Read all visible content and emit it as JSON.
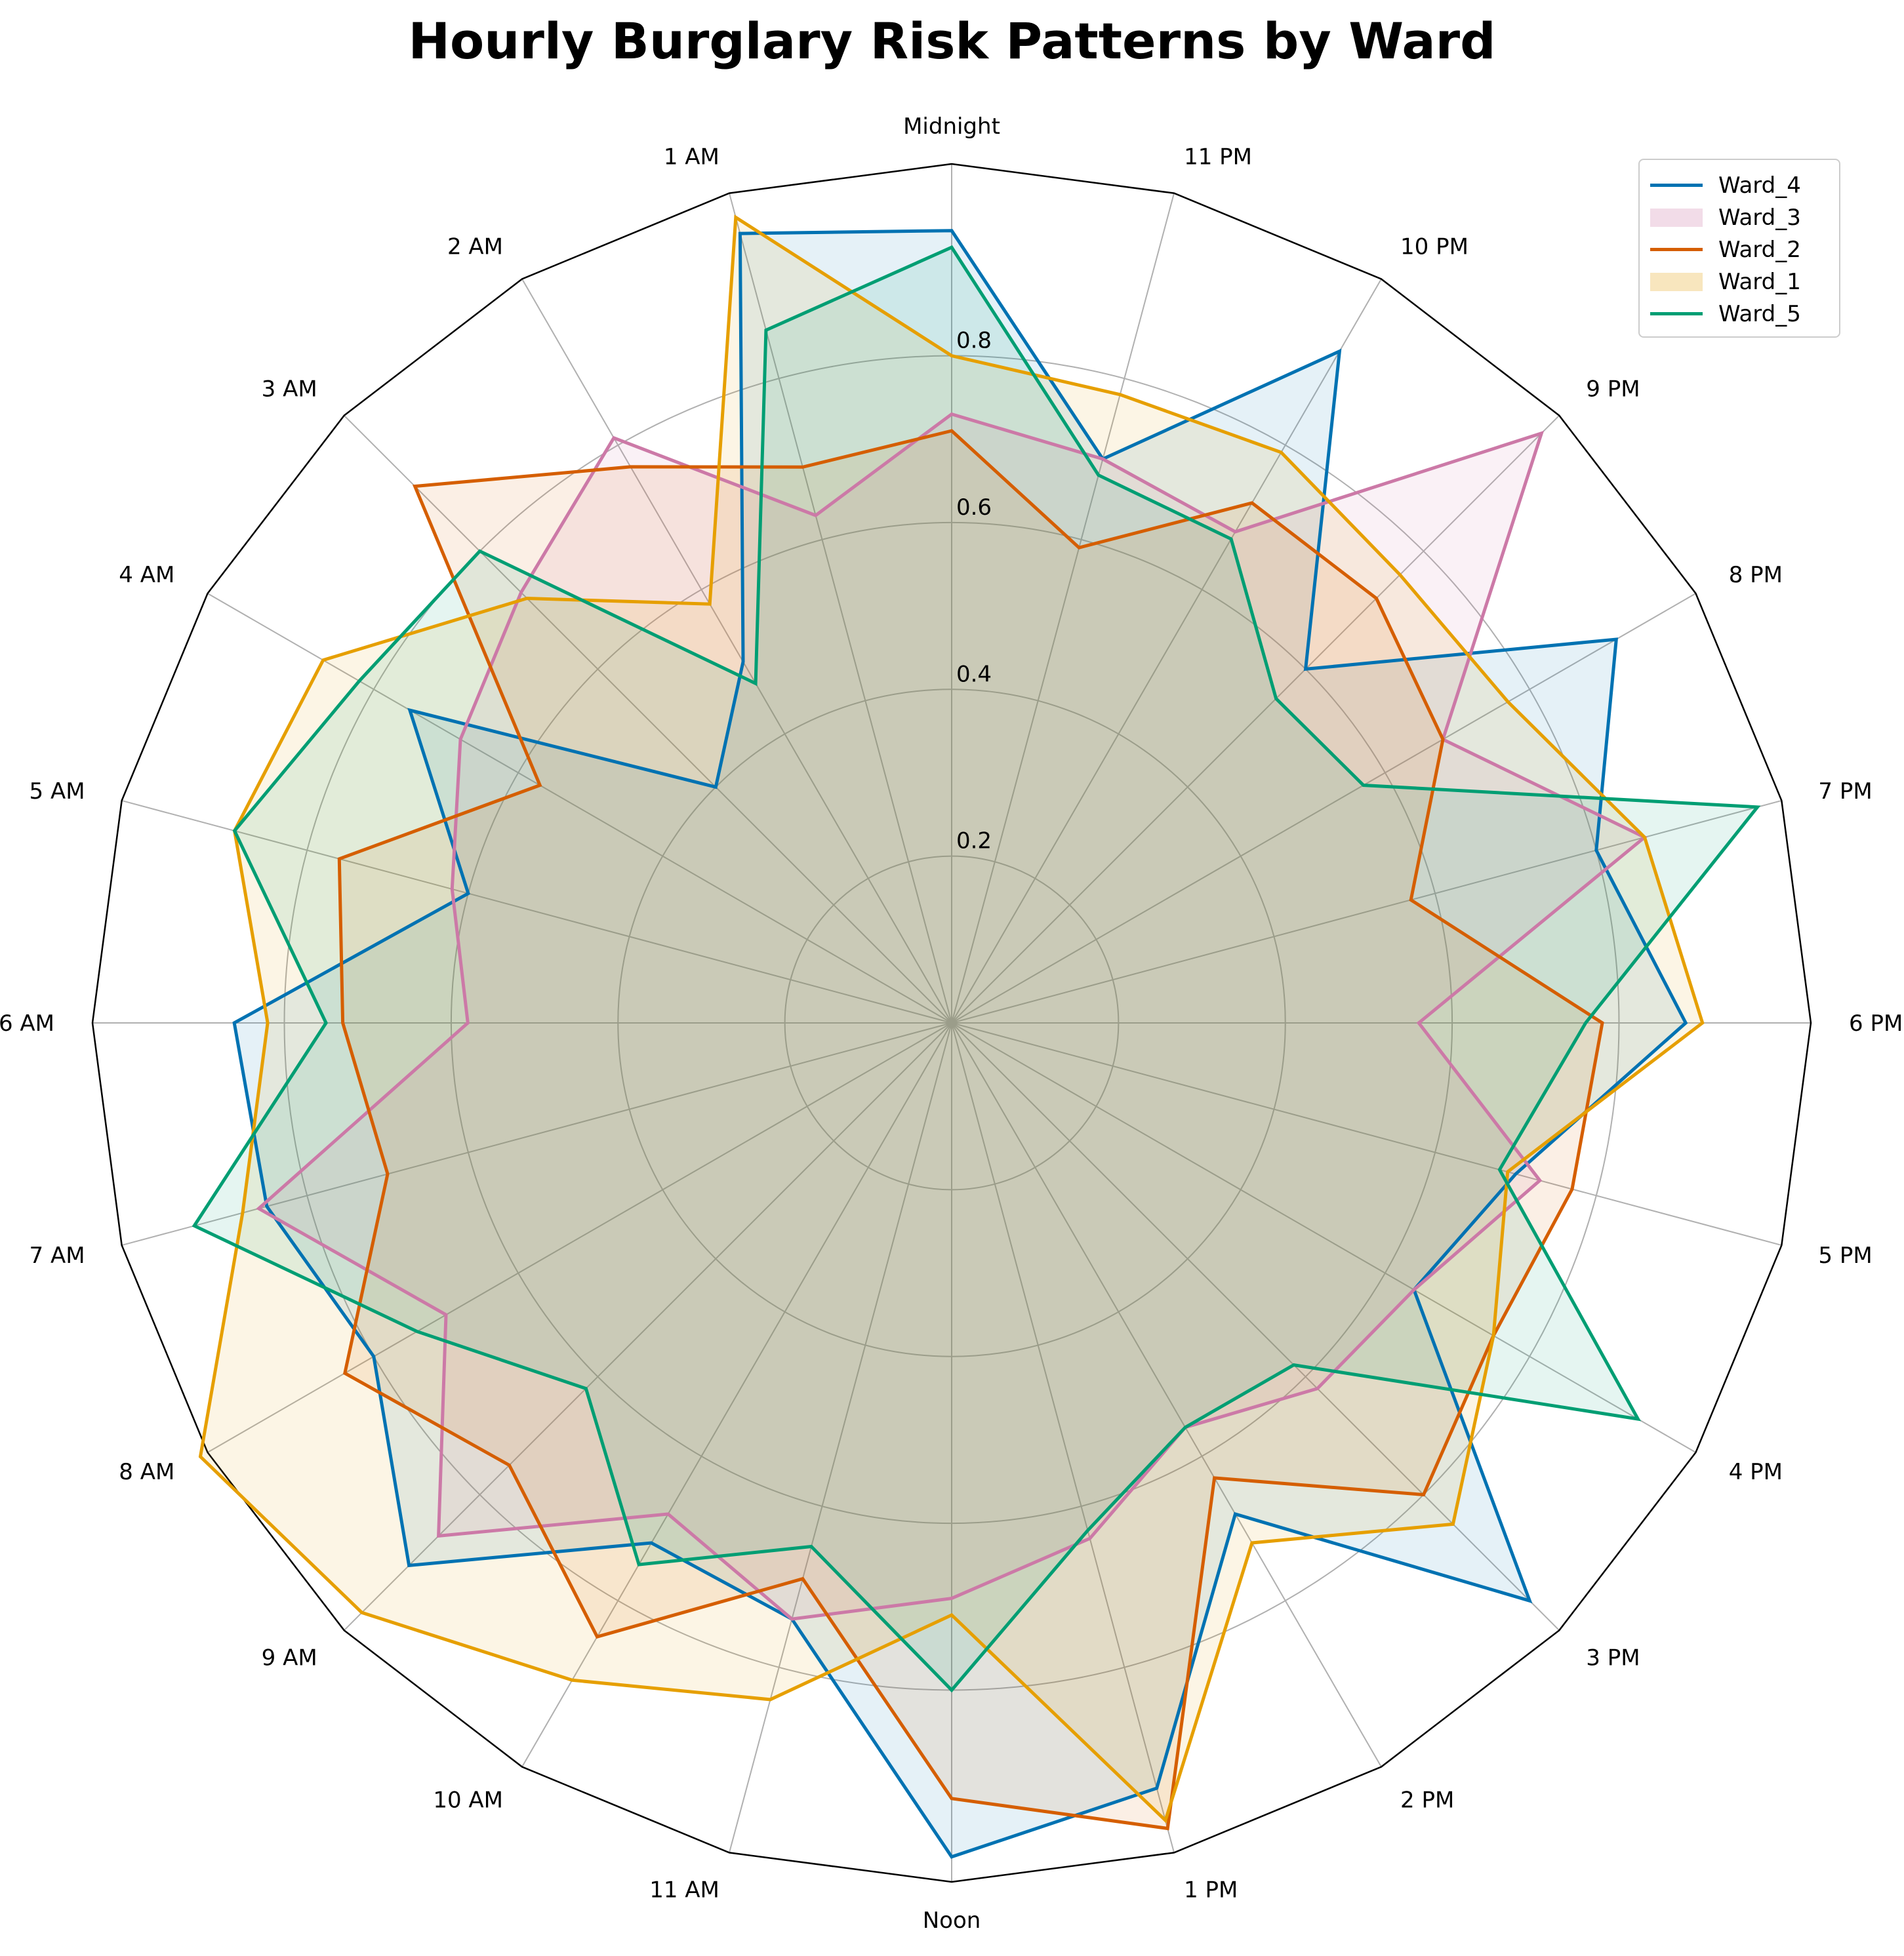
{
  "chart_data": {
    "type": "radar",
    "title": "Hourly Burglary Risk Patterns by Ward",
    "angles": [
      "Midnight",
      "1 AM",
      "2 AM",
      "3 AM",
      "4 AM",
      "5 AM",
      "6 AM",
      "7 AM",
      "8 AM",
      "9 AM",
      "10 AM",
      "11 AM",
      "Noon",
      "1 PM",
      "2 PM",
      "3 PM",
      "4 PM",
      "5 PM",
      "6 PM",
      "7 PM",
      "8 PM",
      "9 PM",
      "10 PM",
      "11 PM"
    ],
    "radial_ticks": [
      "0.2",
      "0.4",
      "0.6",
      "0.8"
    ],
    "rmax": 1.03,
    "grid": true,
    "legend_position": "top-right",
    "series": [
      {
        "name": "Ward_4",
        "color": "#0072B2",
        "legend_style": "line",
        "values": [
          0.95,
          0.98,
          0.5,
          0.4,
          0.75,
          0.6,
          0.86,
          0.85,
          0.8,
          0.92,
          0.72,
          0.74,
          1.0,
          0.95,
          0.68,
          0.98,
          0.64,
          0.7,
          0.88,
          0.8,
          0.92,
          0.6,
          0.93,
          0.7
        ]
      },
      {
        "name": "Ward_3",
        "color": "#CC79A7",
        "legend_style": "patch",
        "values": [
          0.73,
          0.63,
          0.81,
          0.73,
          0.68,
          0.62,
          0.58,
          0.86,
          0.7,
          0.87,
          0.68,
          0.74,
          0.69,
          0.64,
          0.56,
          0.62,
          0.64,
          0.73,
          0.56,
          0.86,
          0.68,
          1.0,
          0.68,
          0.7
        ]
      },
      {
        "name": "Ward_2",
        "color": "#D55E00",
        "legend_style": "line",
        "values": [
          0.71,
          0.69,
          0.77,
          0.91,
          0.57,
          0.76,
          0.73,
          0.7,
          0.84,
          0.75,
          0.85,
          0.69,
          0.93,
          1.0,
          0.63,
          0.8,
          0.75,
          0.77,
          0.78,
          0.57,
          0.68,
          0.72,
          0.72,
          0.59
        ]
      },
      {
        "name": "Ward_1",
        "color": "#E69F00",
        "legend_style": "patch",
        "values": [
          0.8,
          1.0,
          0.58,
          0.72,
          0.87,
          0.89,
          0.82,
          0.88,
          1.04,
          1.0,
          0.91,
          0.84,
          0.71,
          0.99,
          0.72,
          0.85,
          0.75,
          0.69,
          0.9,
          0.86,
          0.77,
          0.76,
          0.79,
          0.78
        ]
      },
      {
        "name": "Ward_5",
        "color": "#009E73",
        "legend_style": "line",
        "values": [
          0.93,
          0.86,
          0.47,
          0.8,
          0.82,
          0.89,
          0.75,
          0.94,
          0.74,
          0.62,
          0.75,
          0.65,
          0.8,
          0.63,
          0.56,
          0.58,
          0.95,
          0.68,
          0.76,
          1.0,
          0.57,
          0.55,
          0.67,
          0.68
        ]
      }
    ]
  }
}
